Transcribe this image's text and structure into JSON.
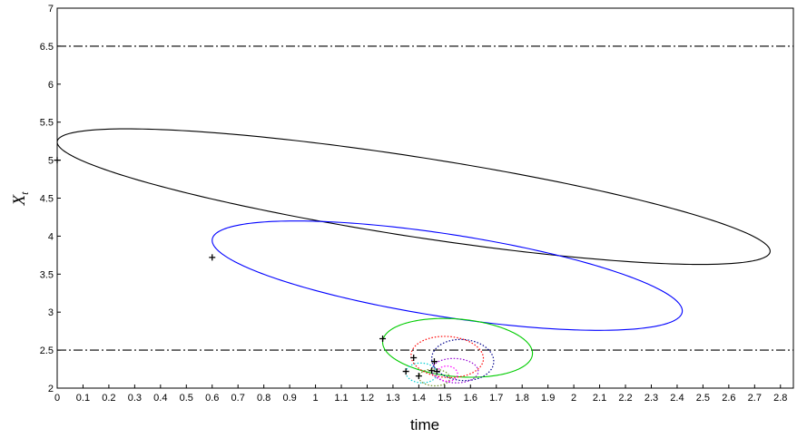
{
  "chart_data": {
    "type": "line",
    "xlabel": "time",
    "ylabel": "X",
    "ylabel_subscript": "t",
    "xlim": [
      0,
      2.85
    ],
    "ylim": [
      2,
      7
    ],
    "x_ticks": [
      "0",
      "0.1",
      "0.2",
      "0.3",
      "0.4",
      "0.5",
      "0.6",
      "0.7",
      "0.8",
      "0.9",
      "1",
      "1.1",
      "1.2",
      "1.3",
      "1.4",
      "1.5",
      "1.6",
      "1.7",
      "1.8",
      "1.9",
      "2",
      "2.1",
      "2.2",
      "2.3",
      "2.4",
      "2.5",
      "2.6",
      "2.7",
      "2.8"
    ],
    "y_ticks": [
      "2",
      "2.5",
      "3",
      "3.5",
      "4",
      "4.5",
      "5",
      "5.5",
      "6",
      "6.5",
      "7"
    ],
    "grid": false,
    "reference_lines": [
      {
        "y": 6.5,
        "style": "dash-dot",
        "color": "#000000"
      },
      {
        "y": 2.5,
        "style": "dash-dot",
        "color": "#000000"
      }
    ],
    "series": [
      {
        "color": "#000000",
        "dash": "solid",
        "start": [
          0.0,
          5.0
        ],
        "cx": 1.38,
        "cy": 4.52,
        "rx": 1.38,
        "ry": 0.53,
        "tilt_per_time": -0.52
      },
      {
        "color": "#0000ff",
        "dash": "solid",
        "start": [
          0.6,
          3.72
        ],
        "cx": 1.51,
        "cy": 3.48,
        "rx": 0.91,
        "ry": 0.55,
        "tilt_per_time": -0.51
      },
      {
        "color": "#00cc00",
        "dash": "solid",
        "start": [
          1.26,
          2.65
        ],
        "cx": 1.55,
        "cy": 2.53,
        "rx": 0.29,
        "ry": 0.38,
        "tilt_per_time": -0.25
      },
      {
        "color": "#ff0000",
        "dash": "dotted",
        "start": [
          1.38,
          2.4
        ],
        "cx": 1.51,
        "cy": 2.41,
        "rx": 0.14,
        "ry": 0.27,
        "tilt_per_time": -0.15
      },
      {
        "color": "#00008b",
        "dash": "dotted",
        "start": [
          1.46,
          2.35
        ],
        "cx": 1.57,
        "cy": 2.37,
        "rx": 0.12,
        "ry": 0.27,
        "tilt_per_time": -0.15
      },
      {
        "color": "#9400d3",
        "dash": "dotted",
        "start": [
          1.45,
          2.23
        ],
        "cx": 1.54,
        "cy": 2.23,
        "rx": 0.09,
        "ry": 0.16,
        "tilt_per_time": -0.1
      },
      {
        "color": "#00ced1",
        "dash": "dotted",
        "start": [
          1.35,
          2.22
        ],
        "cx": 1.41,
        "cy": 2.2,
        "rx": 0.06,
        "ry": 0.13,
        "tilt_per_time": -0.1
      },
      {
        "color": "#6b8e23",
        "dash": "dotted",
        "start": [
          1.4,
          2.16
        ],
        "cx": 1.46,
        "cy": 2.14,
        "rx": 0.06,
        "ry": 0.11,
        "tilt_per_time": -0.1
      },
      {
        "color": "#ff00ff",
        "dash": "dotted",
        "start": [
          1.47,
          2.22
        ],
        "cx": 1.51,
        "cy": 2.19,
        "rx": 0.04,
        "ry": 0.1,
        "tilt_per_time": -0.1
      }
    ]
  }
}
